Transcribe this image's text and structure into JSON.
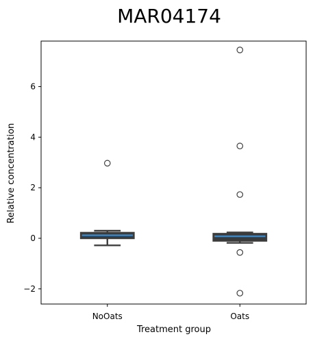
{
  "chart_data": {
    "type": "box",
    "title": "MAR04174",
    "xlabel": "Treatment group",
    "ylabel": "Relative concentration",
    "categories": [
      "NoOats",
      "Oats"
    ],
    "yticks": [
      -2,
      0,
      2,
      4,
      6
    ],
    "ylim": [
      -2.6,
      7.8
    ],
    "grid": false,
    "boxes": [
      {
        "category": "NoOats",
        "q1": 0.0,
        "median": 0.12,
        "q3": 0.22,
        "whisker_low": -0.28,
        "whisker_high": 0.3,
        "outliers": [
          2.97
        ]
      },
      {
        "category": "Oats",
        "q1": -0.1,
        "median": 0.08,
        "q3": 0.18,
        "whisker_low": -0.18,
        "whisker_high": 0.23,
        "outliers": [
          7.45,
          3.65,
          1.73,
          -0.56,
          -2.17
        ]
      }
    ],
    "colors": {
      "box_fill": "#3a3a3a",
      "box_edge": "#3d3d3d",
      "median": "#3a87c7",
      "outlier_edge": "#3d3d3d",
      "axes": "#000000"
    }
  }
}
